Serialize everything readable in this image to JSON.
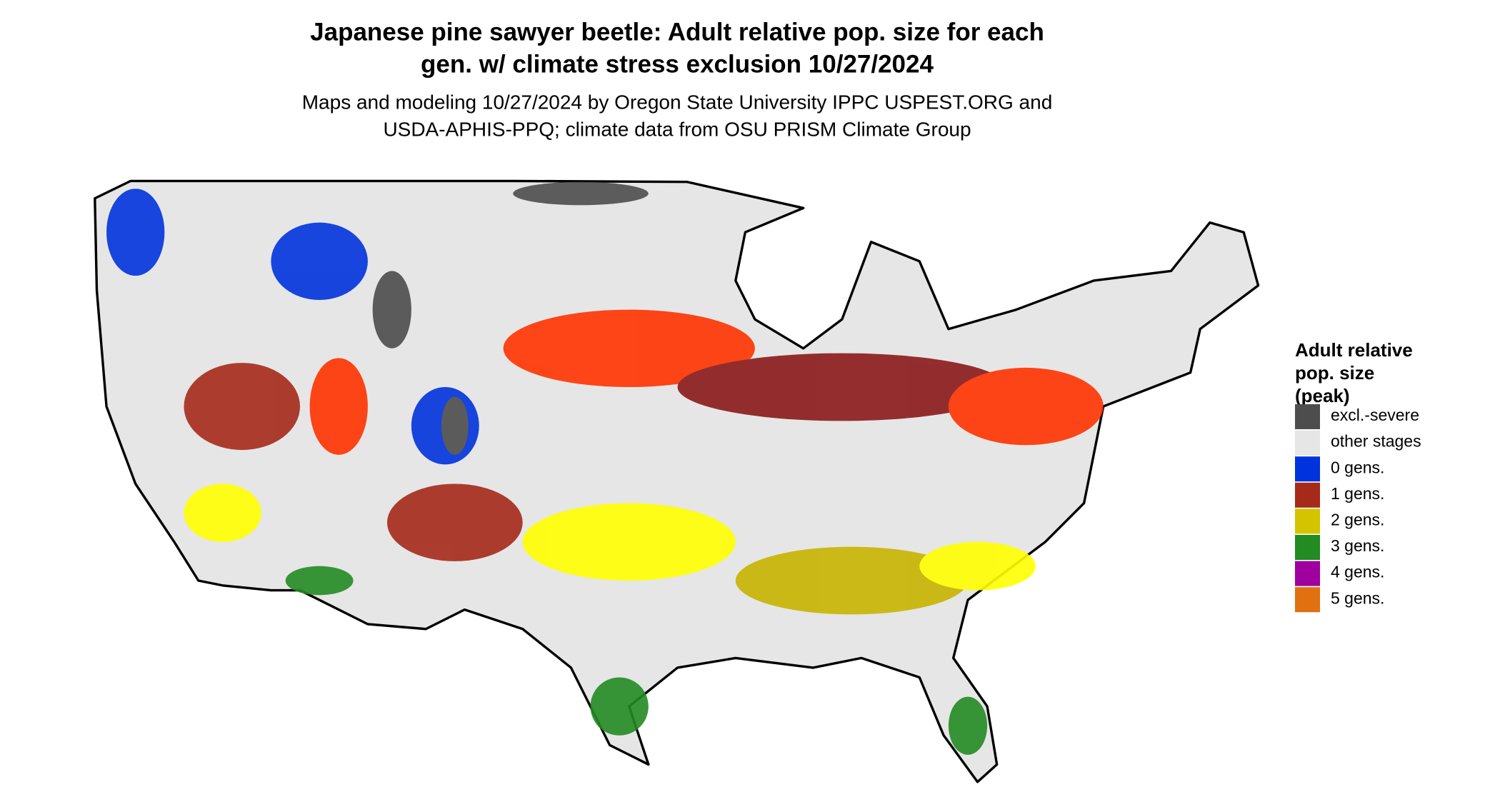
{
  "title": [
    "Japanese pine sawyer beetle: Adult relative pop. size for each",
    "gen. w/ climate stress exclusion 10/27/2024"
  ],
  "subtitle": [
    "Maps and modeling 10/27/2024 by Oregon State University IPPC USPEST.ORG and",
    "USDA-APHIS-PPQ; climate data from OSU PRISM Climate Group"
  ],
  "legend": {
    "title": [
      "Adult relative",
      "pop. size",
      "(peak)"
    ],
    "items": [
      {
        "label": "excl.-severe",
        "color": "#4d4d4d"
      },
      {
        "label": "other stages",
        "color": "#e6e6e6"
      },
      {
        "label": "0 gens.",
        "color": "#0033dd"
      },
      {
        "label": "1 gens.",
        "color": "#a52a1a"
      },
      {
        "label": "2 gens.",
        "color": "#d4c400"
      },
      {
        "label": "3 gens.",
        "color": "#228b22"
      },
      {
        "label": "4 gens.",
        "color": "#a000a0"
      },
      {
        "label": "5 gens.",
        "color": "#e07010"
      }
    ]
  }
}
